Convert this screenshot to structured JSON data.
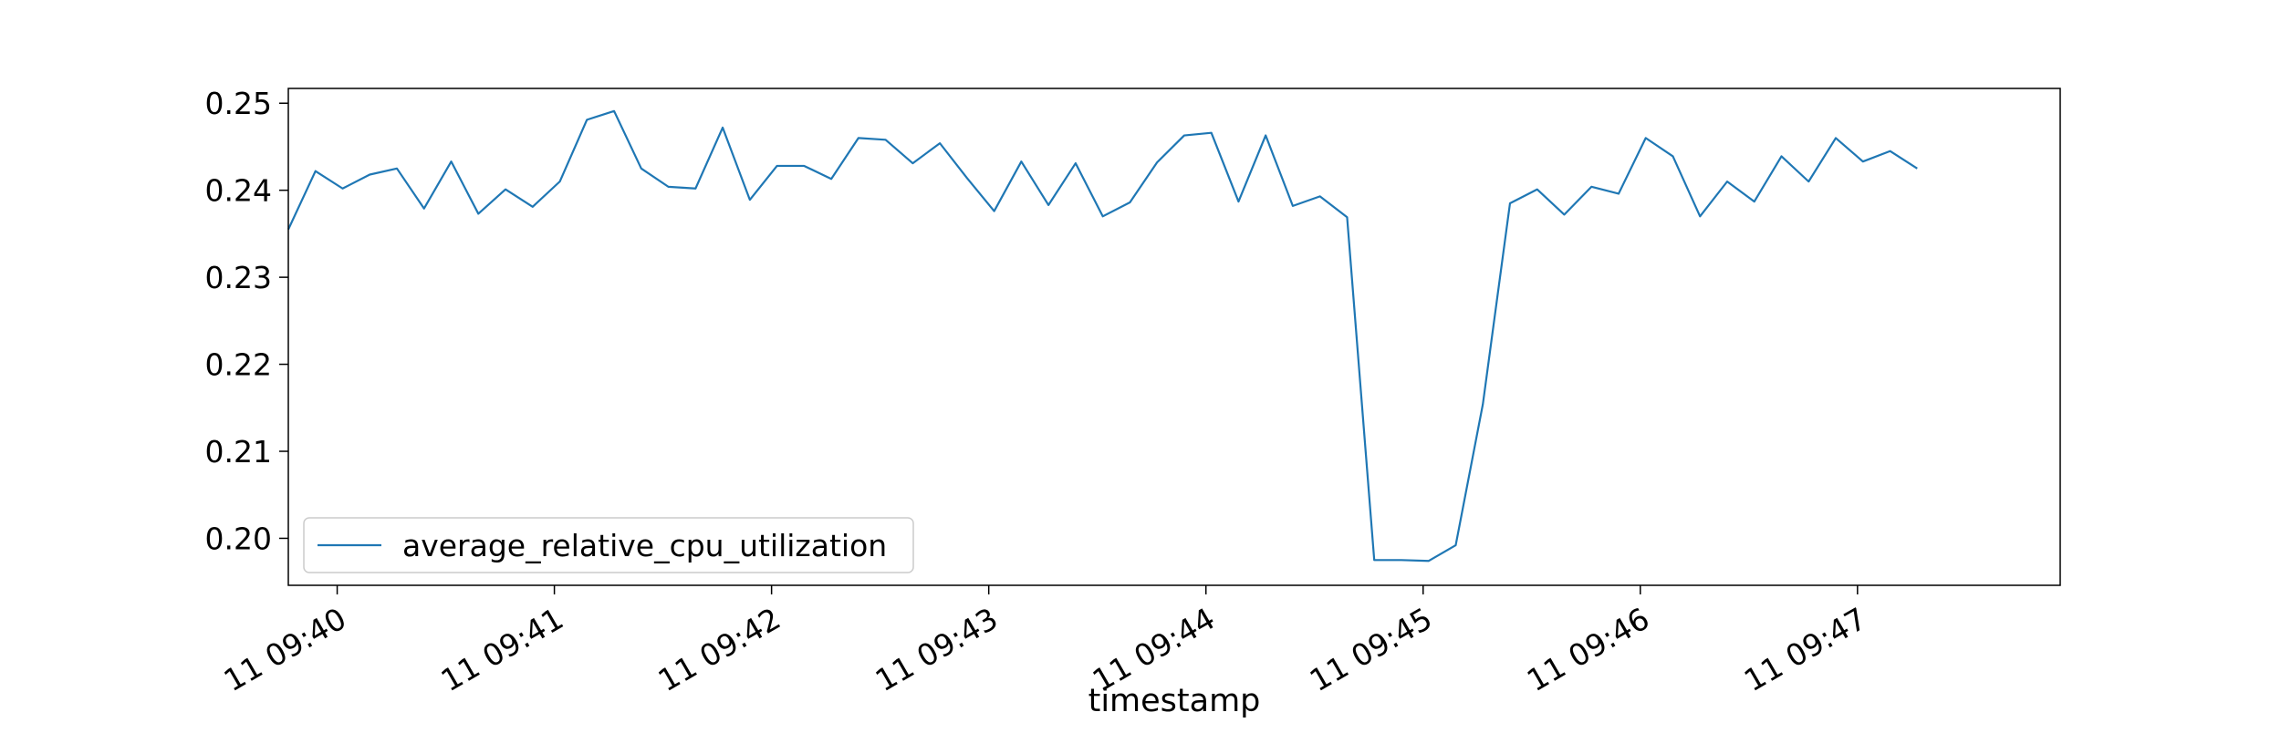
{
  "chart_data": {
    "type": "line",
    "title": "",
    "xlabel": "timestamp",
    "ylabel": "",
    "grid": false,
    "legend_position": "lower-left",
    "x_interval_seconds": 7.5,
    "x_start": "11 09:39:46.5",
    "x_range": [
      "11 09:39:46.5",
      "11 09:47:56"
    ],
    "ylim": [
      0.1946,
      0.2517
    ],
    "x_ticks": [
      "11 09:40",
      "11 09:41",
      "11 09:42",
      "11 09:43",
      "11 09:44",
      "11 09:45",
      "11 09:46",
      "11 09:47"
    ],
    "y_ticks": [
      "0.20",
      "0.21",
      "0.22",
      "0.23",
      "0.24",
      "0.25"
    ],
    "series": [
      {
        "name": "average_relative_cpu_utilization",
        "color": "#1f77b4",
        "values": [
          0.2355,
          0.2422,
          0.2402,
          0.2418,
          0.2425,
          0.2379,
          0.2433,
          0.2373,
          0.2401,
          0.2381,
          0.241,
          0.2481,
          0.2491,
          0.2425,
          0.2404,
          0.2402,
          0.2472,
          0.2389,
          0.2428,
          0.2428,
          0.2413,
          0.246,
          0.2458,
          0.2431,
          0.2454,
          0.2414,
          0.2376,
          0.2433,
          0.2383,
          0.2431,
          0.237,
          0.2386,
          0.2432,
          0.2463,
          0.2466,
          0.2387,
          0.2463,
          0.2382,
          0.2393,
          0.2369,
          0.1975,
          0.1975,
          0.1974,
          0.1992,
          0.2154,
          0.2385,
          0.2401,
          0.2372,
          0.2404,
          0.2396,
          0.246,
          0.2439,
          0.237,
          0.241,
          0.2387,
          0.2439,
          0.241,
          0.246,
          0.2433,
          0.2445,
          0.2425
        ]
      }
    ]
  }
}
